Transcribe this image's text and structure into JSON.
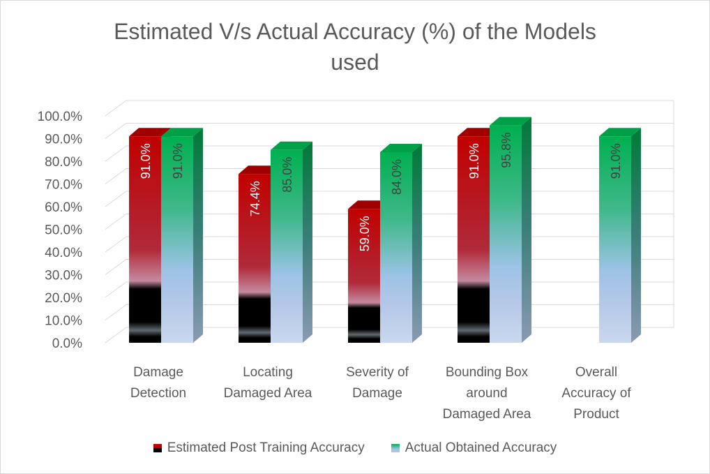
{
  "chart_data": {
    "type": "bar",
    "title_lines": [
      "Estimated V/s Actual Accuracy (%) of the Models",
      "used"
    ],
    "categories": [
      [
        "Damage",
        "Detection"
      ],
      [
        "Locating",
        "Damaged Area"
      ],
      [
        "Severity of",
        "Damage"
      ],
      [
        "Bounding Box",
        "around",
        "Damaged Area"
      ],
      [
        "Overall",
        "Accuracy of",
        "Product"
      ]
    ],
    "series": [
      {
        "name": "Estimated Post Training Accuracy",
        "values": [
          91.0,
          74.4,
          59.0,
          91.0,
          null
        ],
        "labels": [
          "91.0%",
          "74.4%",
          "59.0%",
          "91.0%",
          ""
        ],
        "color_top": "#c00000",
        "color_bottom": "#000000"
      },
      {
        "name": "Actual Obtained Accuracy",
        "values": [
          91.0,
          85.0,
          84.0,
          95.8,
          91.0
        ],
        "labels": [
          "91.0%",
          "85.0%",
          "84.0%",
          "95.8%",
          "91.0%"
        ],
        "color_top": "#00b050",
        "color_bottom": "#b4c7e7"
      }
    ],
    "ylim": [
      0,
      100
    ],
    "yticks": [
      0,
      10,
      20,
      30,
      40,
      50,
      60,
      70,
      80,
      90,
      100
    ],
    "ytick_labels": [
      "0.0%",
      "10.0%",
      "20.0%",
      "30.0%",
      "40.0%",
      "50.0%",
      "60.0%",
      "70.0%",
      "80.0%",
      "90.0%",
      "100.0%"
    ],
    "grid": true,
    "legend": "bottom"
  }
}
